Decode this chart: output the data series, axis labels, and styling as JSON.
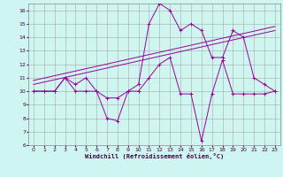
{
  "xlabel": "Windchill (Refroidissement éolien,°C)",
  "background_color": "#cef5f0",
  "grid_color": "#aaaaaa",
  "line_color": "#990099",
  "xlim": [
    -0.5,
    23.5
  ],
  "ylim": [
    6,
    16.5
  ],
  "yticks": [
    6,
    7,
    8,
    9,
    10,
    11,
    12,
    13,
    14,
    15,
    16
  ],
  "xticks": [
    0,
    1,
    2,
    3,
    4,
    5,
    6,
    7,
    8,
    9,
    10,
    11,
    12,
    13,
    14,
    15,
    16,
    17,
    18,
    19,
    20,
    21,
    22,
    23
  ],
  "series1_x": [
    0,
    1,
    2,
    3,
    4,
    5,
    6,
    7,
    8,
    9,
    10,
    11,
    12,
    13,
    14,
    15,
    16,
    17,
    18,
    19,
    20,
    21,
    22,
    23
  ],
  "series1_y": [
    10,
    10,
    10,
    11,
    10.5,
    11,
    10,
    8,
    7.8,
    10,
    10.5,
    15,
    16.5,
    16,
    14.5,
    15,
    14.5,
    12.5,
    12.5,
    14.5,
    14,
    11,
    10.5,
    10
  ],
  "series2_x": [
    0,
    1,
    2,
    3,
    4,
    5,
    6,
    7,
    8,
    9,
    10,
    11,
    12,
    13,
    14,
    15,
    16,
    17,
    18,
    19,
    20,
    21,
    22,
    23
  ],
  "series2_y": [
    10,
    10,
    10,
    11,
    10,
    10,
    10,
    9.5,
    9.5,
    10,
    10,
    11,
    12,
    12.5,
    9.8,
    9.8,
    6.3,
    9.8,
    12.3,
    9.8,
    9.8,
    9.8,
    9.8,
    10
  ],
  "trend1_x": [
    0,
    23
  ],
  "trend1_y": [
    10.5,
    14.5
  ],
  "trend2_x": [
    0,
    23
  ],
  "trend2_y": [
    10.8,
    14.8
  ]
}
